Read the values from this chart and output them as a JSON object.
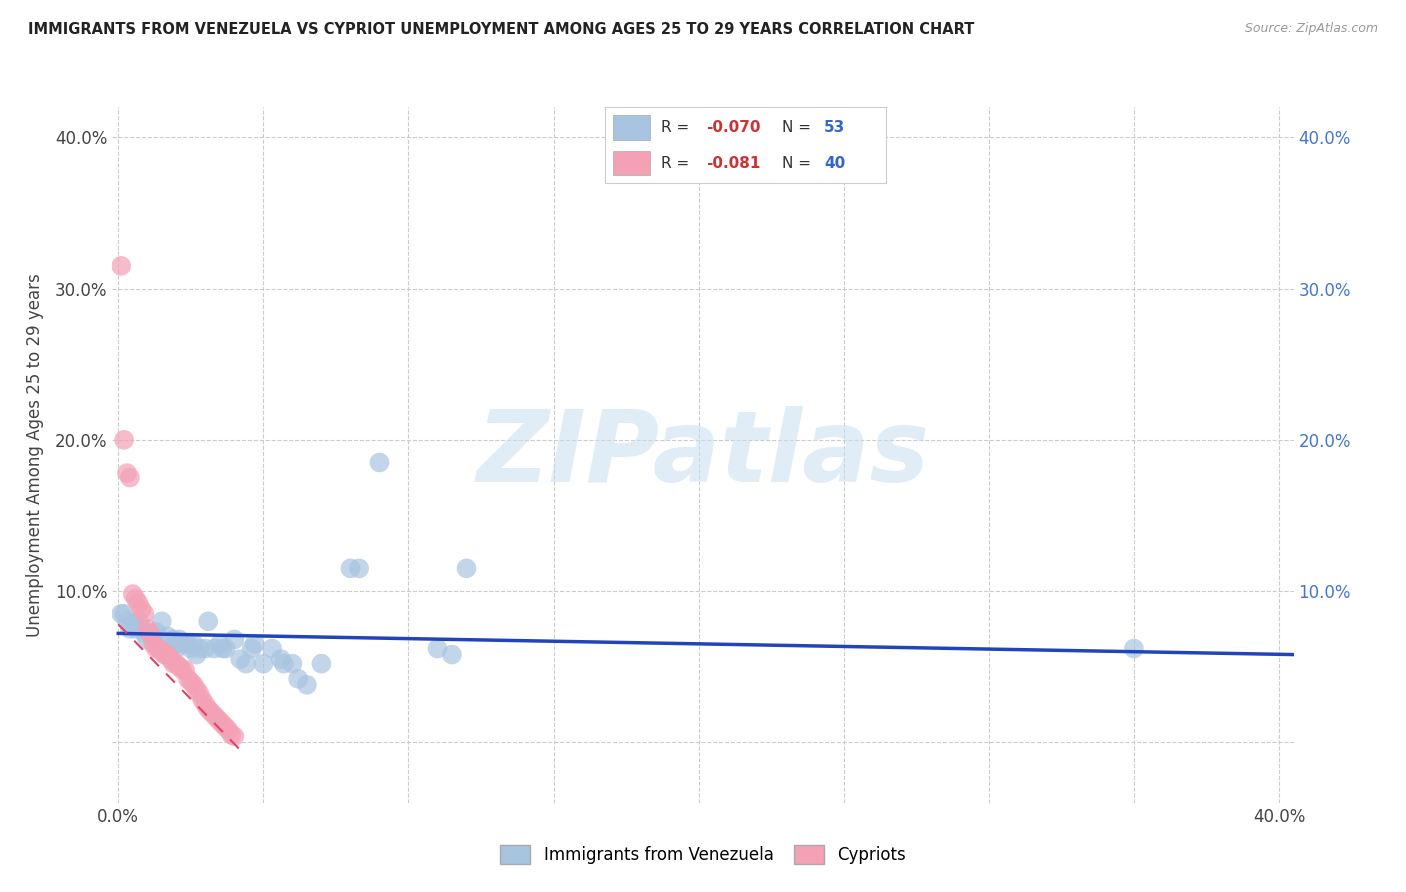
{
  "title": "IMMIGRANTS FROM VENEZUELA VS CYPRIOT UNEMPLOYMENT AMONG AGES 25 TO 29 YEARS CORRELATION CHART",
  "source": "Source: ZipAtlas.com",
  "ylabel": "Unemployment Among Ages 25 to 29 years",
  "xlim": [
    -0.002,
    0.405
  ],
  "ylim": [
    -0.04,
    0.42
  ],
  "xtick_positions": [
    0.0,
    0.05,
    0.1,
    0.15,
    0.2,
    0.25,
    0.3,
    0.35,
    0.4
  ],
  "xtick_labels": [
    "0.0%",
    "",
    "",
    "",
    "",
    "",
    "",
    "",
    "40.0%"
  ],
  "ytick_positions": [
    0.0,
    0.1,
    0.2,
    0.3,
    0.4
  ],
  "ytick_labels_left": [
    "",
    "10.0%",
    "20.0%",
    "30.0%",
    "40.0%"
  ],
  "ytick_labels_right": [
    "",
    "10.0%",
    "20.0%",
    "30.0%",
    "40.0%"
  ],
  "blue_color": "#a8c4e0",
  "pink_color": "#f4a0b5",
  "blue_line_color": "#2244bb",
  "pink_line_color": "#dd4466",
  "blue_scatter": [
    [
      0.001,
      0.085
    ],
    [
      0.002,
      0.085
    ],
    [
      0.003,
      0.08
    ],
    [
      0.004,
      0.075
    ],
    [
      0.005,
      0.078
    ],
    [
      0.006,
      0.075
    ],
    [
      0.007,
      0.08
    ],
    [
      0.008,
      0.075
    ],
    [
      0.009,
      0.072
    ],
    [
      0.01,
      0.068
    ],
    [
      0.011,
      0.072
    ],
    [
      0.012,
      0.068
    ],
    [
      0.013,
      0.073
    ],
    [
      0.014,
      0.062
    ],
    [
      0.015,
      0.08
    ],
    [
      0.016,
      0.058
    ],
    [
      0.017,
      0.07
    ],
    [
      0.018,
      0.062
    ],
    [
      0.019,
      0.068
    ],
    [
      0.02,
      0.062
    ],
    [
      0.021,
      0.068
    ],
    [
      0.022,
      0.065
    ],
    [
      0.024,
      0.065
    ],
    [
      0.025,
      0.062
    ],
    [
      0.026,
      0.065
    ],
    [
      0.027,
      0.058
    ],
    [
      0.028,
      0.062
    ],
    [
      0.03,
      0.062
    ],
    [
      0.031,
      0.08
    ],
    [
      0.033,
      0.062
    ],
    [
      0.035,
      0.065
    ],
    [
      0.036,
      0.062
    ],
    [
      0.037,
      0.062
    ],
    [
      0.04,
      0.068
    ],
    [
      0.042,
      0.055
    ],
    [
      0.044,
      0.052
    ],
    [
      0.046,
      0.062
    ],
    [
      0.047,
      0.065
    ],
    [
      0.05,
      0.052
    ],
    [
      0.053,
      0.062
    ],
    [
      0.056,
      0.055
    ],
    [
      0.057,
      0.052
    ],
    [
      0.06,
      0.052
    ],
    [
      0.062,
      0.042
    ],
    [
      0.065,
      0.038
    ],
    [
      0.07,
      0.052
    ],
    [
      0.08,
      0.115
    ],
    [
      0.083,
      0.115
    ],
    [
      0.09,
      0.185
    ],
    [
      0.11,
      0.062
    ],
    [
      0.115,
      0.058
    ],
    [
      0.12,
      0.115
    ],
    [
      0.35,
      0.062
    ]
  ],
  "pink_scatter": [
    [
      0.001,
      0.315
    ],
    [
      0.002,
      0.2
    ],
    [
      0.003,
      0.178
    ],
    [
      0.004,
      0.175
    ],
    [
      0.005,
      0.098
    ],
    [
      0.006,
      0.095
    ],
    [
      0.007,
      0.092
    ],
    [
      0.008,
      0.088
    ],
    [
      0.009,
      0.085
    ],
    [
      0.01,
      0.075
    ],
    [
      0.011,
      0.072
    ],
    [
      0.012,
      0.065
    ],
    [
      0.013,
      0.062
    ],
    [
      0.014,
      0.062
    ],
    [
      0.015,
      0.06
    ],
    [
      0.016,
      0.058
    ],
    [
      0.017,
      0.058
    ],
    [
      0.018,
      0.055
    ],
    [
      0.019,
      0.052
    ],
    [
      0.02,
      0.052
    ],
    [
      0.021,
      0.05
    ],
    [
      0.022,
      0.048
    ],
    [
      0.023,
      0.048
    ],
    [
      0.024,
      0.042
    ],
    [
      0.025,
      0.04
    ],
    [
      0.026,
      0.038
    ],
    [
      0.027,
      0.035
    ],
    [
      0.028,
      0.032
    ],
    [
      0.029,
      0.028
    ],
    [
      0.03,
      0.025
    ],
    [
      0.031,
      0.022
    ],
    [
      0.032,
      0.02
    ],
    [
      0.033,
      0.018
    ],
    [
      0.034,
      0.016
    ],
    [
      0.035,
      0.014
    ],
    [
      0.036,
      0.012
    ],
    [
      0.037,
      0.01
    ],
    [
      0.038,
      0.008
    ],
    [
      0.039,
      0.005
    ],
    [
      0.04,
      0.004
    ]
  ],
  "blue_trend_x": [
    0.0,
    0.405
  ],
  "blue_trend_y": [
    0.072,
    0.058
  ],
  "pink_trend_x": [
    0.0,
    0.042
  ],
  "pink_trend_y": [
    0.078,
    -0.005
  ],
  "watermark_text": "ZIPatlas",
  "legend_r1_label": "R = ",
  "legend_r1_val": "-0.070",
  "legend_n1_label": "N = ",
  "legend_n1_val": "53",
  "legend_r2_label": "R = ",
  "legend_r2_val": "-0.081",
  "legend_n2_label": "N = ",
  "legend_n2_val": "40",
  "bottom_legend_labels": [
    "Immigrants from Venezuela",
    "Cypriots"
  ]
}
